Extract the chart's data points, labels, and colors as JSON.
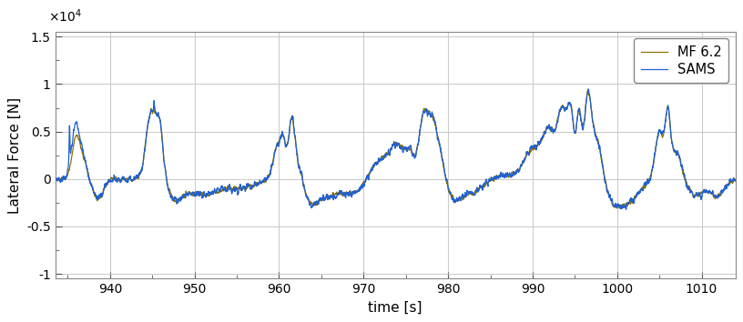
{
  "xlabel": "time [s]",
  "ylabel": "Lateral Force [N]",
  "xlim": [
    933.5,
    1014.0
  ],
  "ylim": [
    -10500.0,
    15500.0
  ],
  "yticks": [
    -10000.0,
    -5000.0,
    0,
    5000.0,
    10000.0,
    15000.0
  ],
  "ytick_labels": [
    "-1",
    "-0.5",
    "0",
    "0.5",
    "1",
    "1.5"
  ],
  "xticks": [
    940,
    950,
    960,
    970,
    980,
    990,
    1000,
    1010
  ],
  "sams_color": "#2060d0",
  "mf_color": "#8b7200",
  "legend_labels": [
    "SAMS",
    "MF 6.2"
  ],
  "scale_label": "$\\times 10^4$",
  "background_color": "#ffffff",
  "grid_color": "#cccccc",
  "linewidth_sams": 0.9,
  "linewidth_mf": 0.9
}
